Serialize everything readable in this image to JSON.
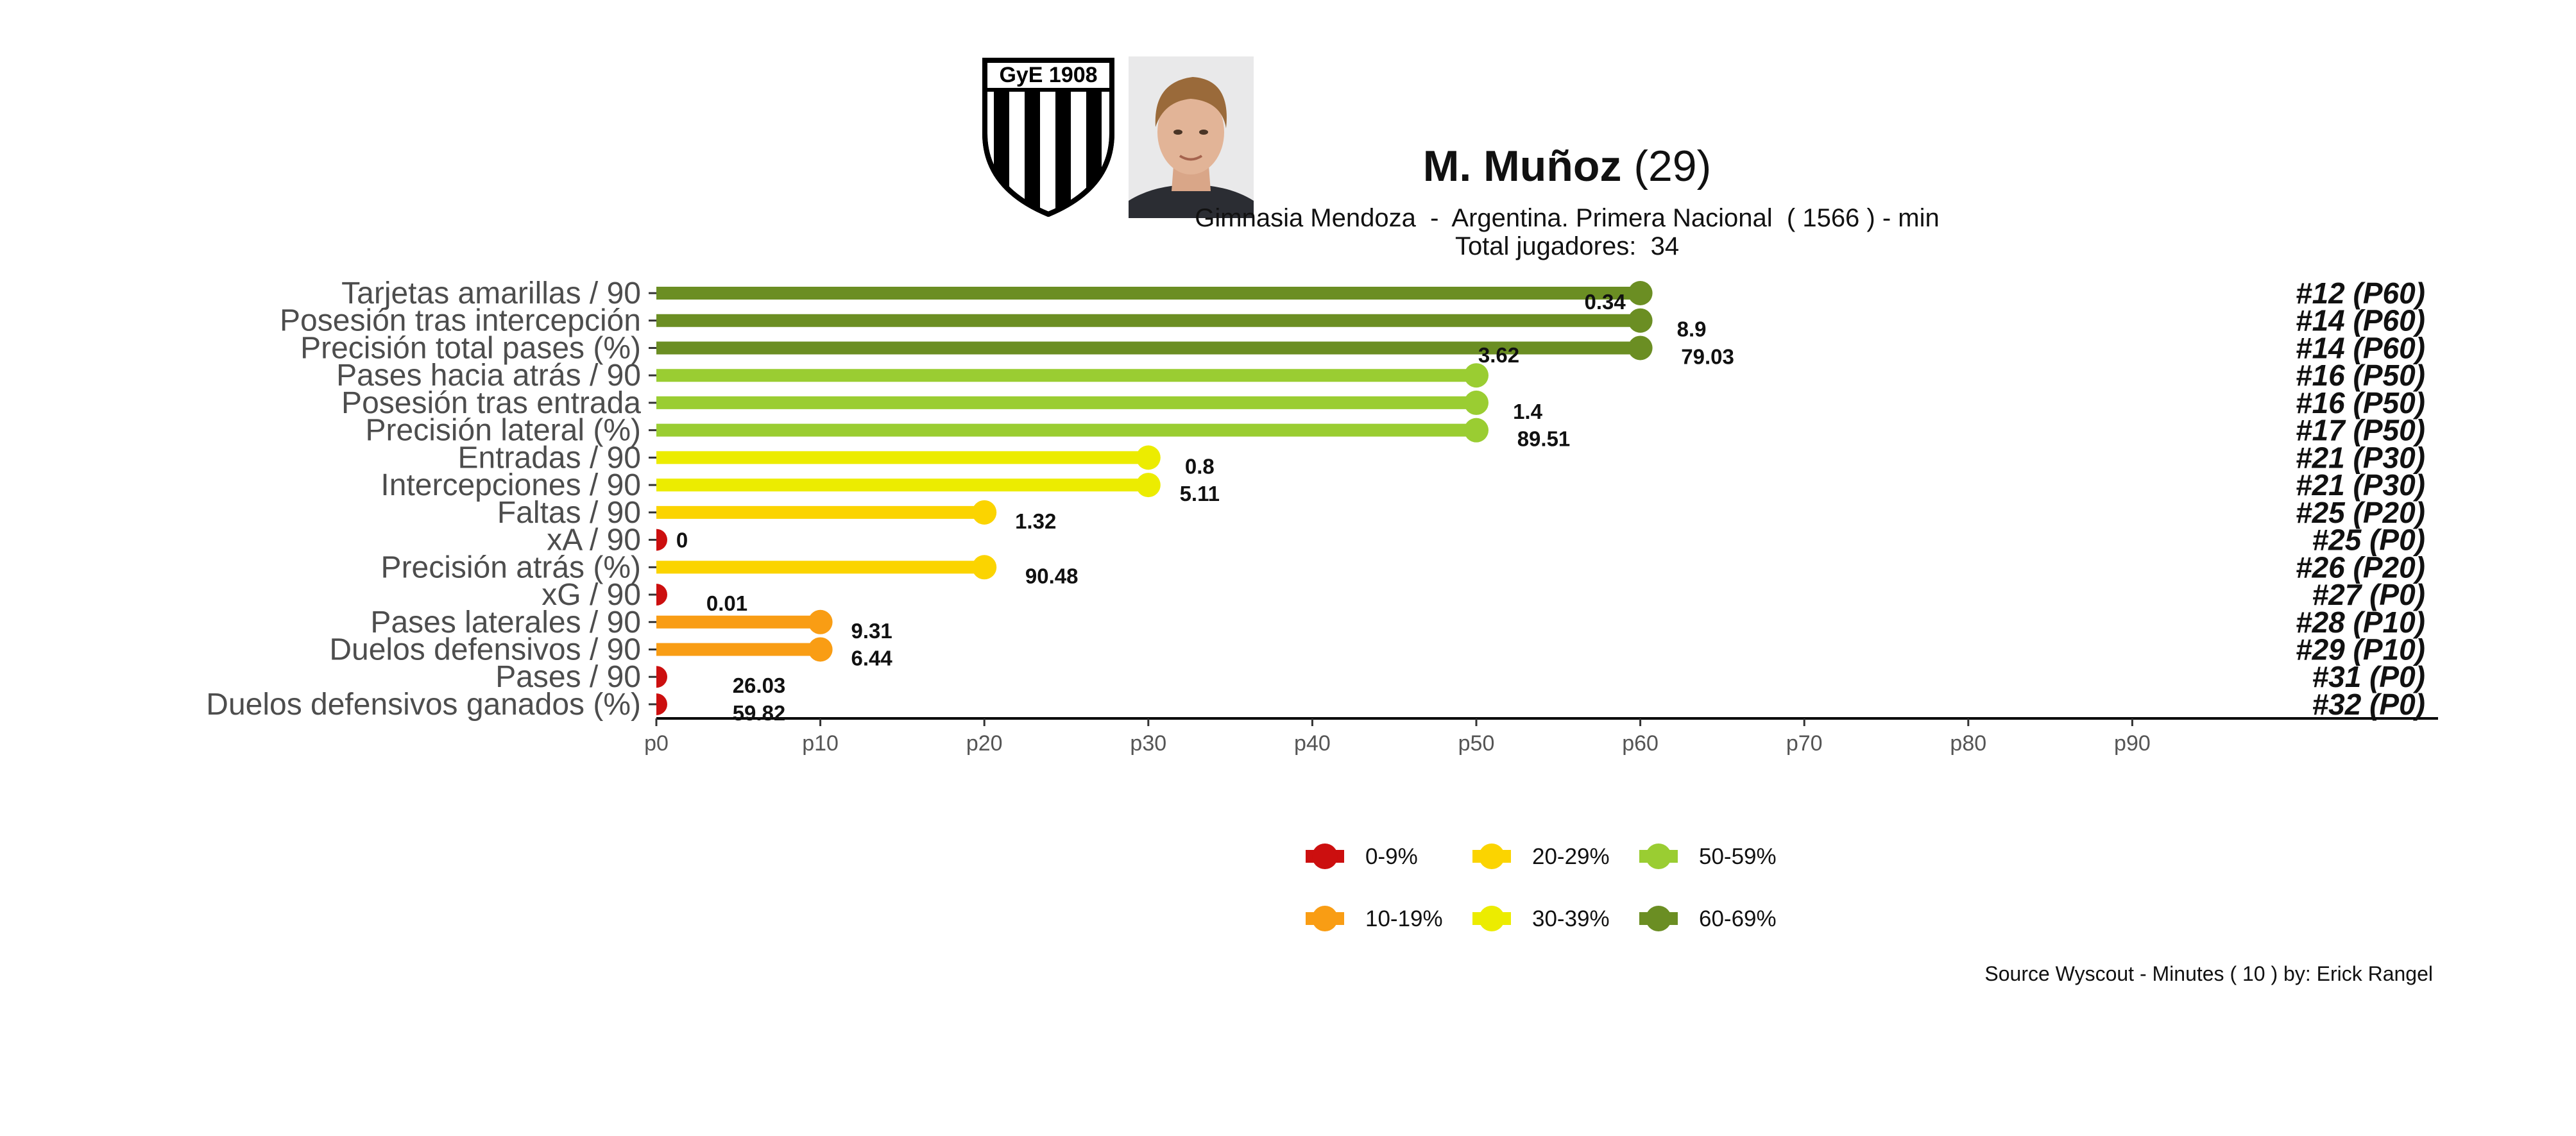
{
  "header": {
    "player_name": "M. Muñoz",
    "player_age": "(29)",
    "subtitle": "Gimnasia Mendoza  -  Argentina. Primera Nacional  ( 1566 ) - min",
    "total_players": "Total jugadores:  34",
    "crest_text": "GyE 1908",
    "photo_alt": "player-photo"
  },
  "caption": "Source Wyscout - Minutes ( 10 ) by: Erick Rangel",
  "colors": {
    "0-9%": "#cc0f0f",
    "10-19%": "#f99d14",
    "20-29%": "#fbd400",
    "30-39%": "#ecec00",
    "50-59%": "#9acd32",
    "60-69%": "#6b8e23"
  },
  "chart_data": {
    "type": "lollipop",
    "orientation": "horizontal",
    "xlabel": "",
    "ylabel": "",
    "xlim": [
      0,
      109
    ],
    "x_ticks": [
      "p0",
      "p10",
      "p20",
      "p30",
      "p40",
      "p50",
      "p60",
      "p70",
      "p80",
      "p90"
    ],
    "x_tick_values": [
      0,
      10,
      20,
      30,
      40,
      50,
      60,
      70,
      80,
      90
    ],
    "grid": false,
    "legend_position": "bottom",
    "legend": [
      {
        "label": "0-9%",
        "color": "#cc0f0f"
      },
      {
        "label": "20-29%",
        "color": "#fbd400"
      },
      {
        "label": "50-59%",
        "color": "#9acd32"
      },
      {
        "label": "10-19%",
        "color": "#f99d14"
      },
      {
        "label": "30-39%",
        "color": "#ecec00"
      },
      {
        "label": "60-69%",
        "color": "#6b8e23"
      }
    ],
    "rows": [
      {
        "metric": "Tarjetas amarillas / 90",
        "percentile": 60,
        "value": "0.34",
        "rank": "#12 (P60)",
        "color": "#6b8e23"
      },
      {
        "metric": "Posesión tras intercepción",
        "percentile": 60,
        "value": "8.9",
        "rank": "#14 (P60)",
        "color": "#6b8e23"
      },
      {
        "metric": "Precisión total pases (%)",
        "percentile": 60,
        "value": "79.03",
        "rank": "#14 (P60)",
        "color": "#6b8e23"
      },
      {
        "metric": "Pases hacia atrás / 90",
        "percentile": 50,
        "value": "3.62",
        "rank": "#16 (P50)",
        "color": "#9acd32"
      },
      {
        "metric": "Posesión tras entrada",
        "percentile": 50,
        "value": "1.4",
        "rank": "#16 (P50)",
        "color": "#9acd32"
      },
      {
        "metric": "Precisión lateral (%)",
        "percentile": 50,
        "value": "89.51",
        "rank": "#17 (P50)",
        "color": "#9acd32"
      },
      {
        "metric": "Entradas / 90",
        "percentile": 30,
        "value": "0.8",
        "rank": "#21 (P30)",
        "color": "#ecec00"
      },
      {
        "metric": "Intercepciones / 90",
        "percentile": 30,
        "value": "5.11",
        "rank": "#21 (P30)",
        "color": "#ecec00"
      },
      {
        "metric": "Faltas / 90",
        "percentile": 20,
        "value": "1.32",
        "rank": "#25 (P20)",
        "color": "#fbd400"
      },
      {
        "metric": "xA / 90",
        "percentile": 0,
        "value": "0",
        "rank": "#25 (P0)",
        "color": "#cc0f0f"
      },
      {
        "metric": "Precisión atrás (%)",
        "percentile": 20,
        "value": "90.48",
        "rank": "#26 (P20)",
        "color": "#fbd400"
      },
      {
        "metric": "xG / 90",
        "percentile": 0,
        "value": "0.01",
        "rank": "#27 (P0)",
        "color": "#cc0f0f"
      },
      {
        "metric": "Pases laterales / 90",
        "percentile": 10,
        "value": "9.31",
        "rank": "#28 (P10)",
        "color": "#f99d14"
      },
      {
        "metric": "Duelos defensivos / 90",
        "percentile": 10,
        "value": "6.44",
        "rank": "#29 (P10)",
        "color": "#f99d14"
      },
      {
        "metric": "Pases / 90",
        "percentile": 0,
        "value": "26.03",
        "rank": "#31 (P0)",
        "color": "#cc0f0f"
      },
      {
        "metric": "Duelos defensivos ganados (%)",
        "percentile": 0,
        "value": "59.82",
        "rank": "#32 (P0)",
        "color": "#cc0f0f"
      }
    ]
  }
}
